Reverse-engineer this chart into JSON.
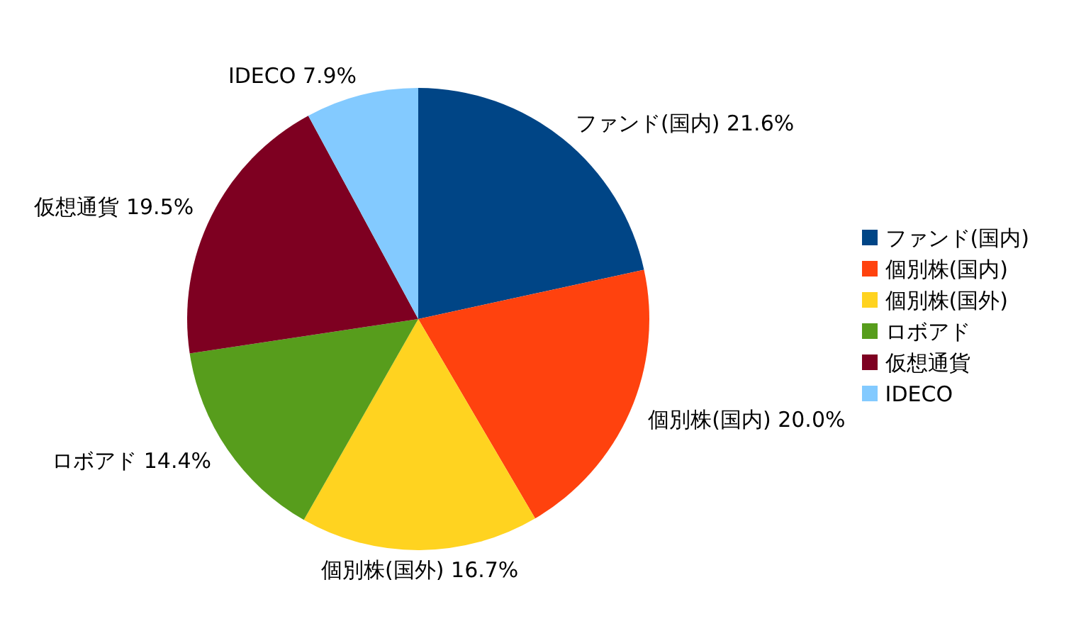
{
  "chart_data": {
    "type": "pie",
    "categories": [
      "ファンド(国内)",
      "個別株(国内)",
      "個別株(国外)",
      "ロボアド",
      "仮想通貨",
      "IDECO"
    ],
    "values": [
      21.6,
      20.0,
      16.7,
      14.4,
      19.5,
      7.9
    ],
    "colors": [
      "#004586",
      "#ff420e",
      "#ffd320",
      "#579d1c",
      "#7e0021",
      "#83caff"
    ],
    "value_labels": [
      "21.6%",
      "20.0%",
      "16.7%",
      "14.4%",
      "19.5%",
      "7.9%"
    ],
    "legend": "right"
  }
}
